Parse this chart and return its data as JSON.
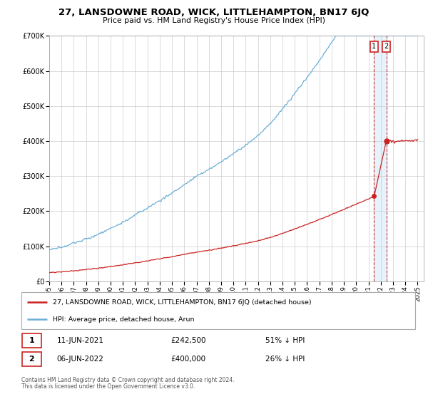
{
  "title": "27, LANSDOWNE ROAD, WICK, LITTLEHAMPTON, BN17 6JQ",
  "subtitle": "Price paid vs. HM Land Registry's House Price Index (HPI)",
  "ylim": [
    0,
    700000
  ],
  "xlim_start": 1995.0,
  "xlim_end": 2025.5,
  "hpi_color": "#6baed6",
  "price_color": "#cc2222",
  "annotation1_year": 2021.458,
  "annotation1_value": 242500,
  "annotation2_year": 2022.458,
  "annotation2_value": 400000,
  "legend_label_price": "27, LANSDOWNE ROAD, WICK, LITTLEHAMPTON, BN17 6JQ (detached house)",
  "legend_label_hpi": "HPI: Average price, detached house, Arun",
  "footer1": "Contains HM Land Registry data © Crown copyright and database right 2024.",
  "footer2": "This data is licensed under the Open Government Licence v3.0.",
  "background_color": "#ffffff",
  "grid_color": "#cccccc"
}
